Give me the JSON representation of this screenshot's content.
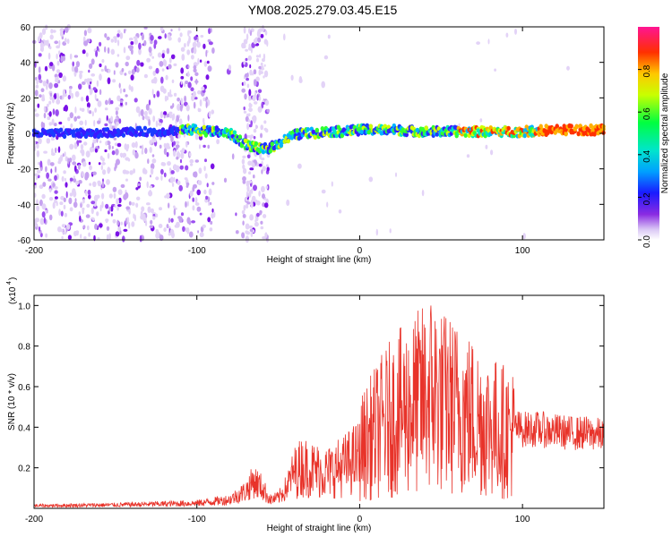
{
  "title": "YM08.2025.279.03.45.E15",
  "chart_data": [
    {
      "type": "heatmap",
      "xlabel": "Height of straight line (km)",
      "ylabel": "Frequency (Hz)",
      "xlim": [
        -200,
        150
      ],
      "ylim": [
        -60,
        60
      ],
      "xticks": [
        "-200",
        "-100",
        "0",
        "100"
      ],
      "yticks": [
        "-60",
        "-40",
        "-20",
        "0",
        "20",
        "40",
        "60"
      ],
      "colorbar": {
        "label": "Normalized spectral amplitude",
        "range": [
          0,
          1
        ],
        "ticks": [
          "0.0",
          "0.2",
          "0.4",
          "0.6",
          "0.8"
        ]
      },
      "ridge": {
        "x": [
          -200,
          -180,
          -160,
          -140,
          -120,
          -110,
          -100,
          -90,
          -80,
          -75,
          -70,
          -65,
          -60,
          -55,
          -50,
          -45,
          -40,
          -35,
          -30,
          -20,
          -10,
          0,
          20,
          40,
          60,
          80,
          100,
          120,
          150
        ],
        "y": [
          0,
          0,
          0,
          1,
          1,
          2,
          2,
          1,
          0,
          -3,
          -6,
          -8,
          -9,
          -8,
          -6,
          -3,
          -1,
          0,
          0,
          1,
          1,
          2,
          2,
          1,
          1,
          1,
          1,
          2,
          2
        ]
      }
    },
    {
      "type": "line",
      "xlabel": "Height of straight line (km)",
      "ylabel": "SNR (10 * v/v)",
      "yscale_label": "(x10",
      "yscale_exp": "4",
      "xlim": [
        -200,
        150
      ],
      "ylim": [
        0,
        1.05
      ],
      "xticks": [
        "-200",
        "-100",
        "0",
        "100"
      ],
      "yticks": [
        "0.2",
        "0.4",
        "0.6",
        "0.8",
        "1.0"
      ],
      "color": "#e8332a",
      "envelope": {
        "x": [
          -200,
          -150,
          -100,
          -80,
          -70,
          -65,
          -60,
          -55,
          -50,
          -45,
          -40,
          -35,
          -30,
          -20,
          -10,
          0,
          10,
          20,
          30,
          40,
          45,
          50,
          60,
          70,
          80,
          90,
          100,
          110,
          120,
          130,
          140,
          150
        ],
        "y": [
          0.015,
          0.02,
          0.03,
          0.05,
          0.1,
          0.16,
          0.12,
          0.05,
          0.06,
          0.12,
          0.22,
          0.26,
          0.24,
          0.22,
          0.26,
          0.32,
          0.42,
          0.5,
          0.55,
          0.6,
          0.65,
          0.58,
          0.55,
          0.5,
          0.45,
          0.42,
          0.4,
          0.4,
          0.39,
          0.38,
          0.38,
          0.37
        ]
      }
    }
  ]
}
